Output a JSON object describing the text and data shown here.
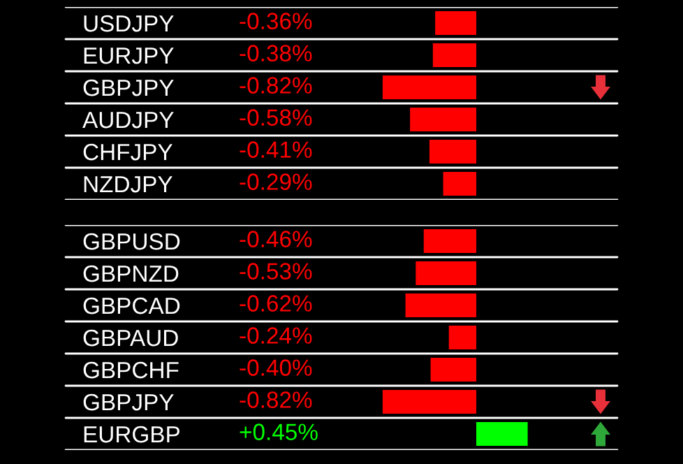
{
  "chart_data": [
    {
      "type": "bar",
      "orientation": "horizontal",
      "categories": [
        "USDJPY",
        "EURJPY",
        "GBPJPY",
        "AUDJPY",
        "CHFJPY",
        "NZDJPY"
      ],
      "values": [
        -0.36,
        -0.38,
        -0.82,
        -0.58,
        -0.41,
        -0.29
      ],
      "value_labels": [
        "-0.36%",
        "-0.38%",
        "-0.82%",
        "-0.58%",
        "-0.41%",
        "-0.29%"
      ],
      "colors": [
        "#ff0000",
        "#ff0000",
        "#ff0000",
        "#ff0000",
        "#ff0000",
        "#ff0000"
      ],
      "xlim": [
        -4.17,
        1.81
      ],
      "tick_labels": "y"
    },
    {
      "type": "bar",
      "orientation": "horizontal",
      "categories": [
        "GBPUSD",
        "GBPNZD",
        "GBPCAD",
        "GBPAUD",
        "GBPCHF",
        "GBPJPY",
        "EURGBP"
      ],
      "values": [
        -0.46,
        -0.53,
        -0.62,
        -0.24,
        -0.4,
        -0.82,
        0.45
      ],
      "value_labels": [
        "-0.46%",
        "-0.53%",
        "-0.62%",
        "-0.24%",
        "-0.40%",
        "-0.82%",
        "+0.45%"
      ],
      "colors": [
        "#ff0000",
        "#ff0000",
        "#ff0000",
        "#ff0000",
        "#ff0000",
        "#ff0000",
        "#00ff00"
      ],
      "xlim": [
        -4.17,
        1.81
      ],
      "tick_labels": "y"
    }
  ]
}
